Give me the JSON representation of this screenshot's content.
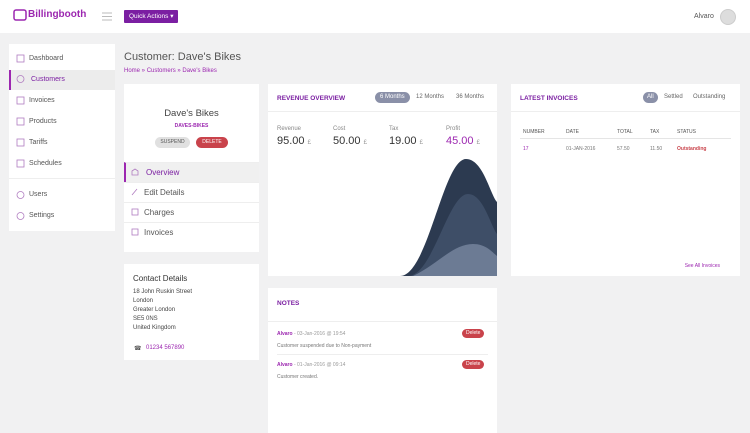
{
  "header": {
    "brand": "Billingbooth",
    "quick_actions": "Quick Actions",
    "user": "Alvaro"
  },
  "sidebar": {
    "items": [
      "Dashboard",
      "Customers",
      "Invoices",
      "Products",
      "Tariffs",
      "Schedules",
      "Users",
      "Settings"
    ]
  },
  "page": {
    "title": "Customer: Dave's Bikes",
    "breadcrumb": [
      "Home",
      "Customers",
      "Dave's Bikes"
    ]
  },
  "customer": {
    "name": "Dave's Bikes",
    "code": "DAVES-BIKES",
    "suspend": "SUSPEND",
    "delete": "DELETE",
    "menu": [
      "Overview",
      "Edit Details",
      "Charges",
      "Invoices"
    ]
  },
  "contact": {
    "title": "Contact Details",
    "address": [
      "18 John Ruskin Street",
      "London",
      "Greater London",
      "SE5 0NS",
      "United Kingdom"
    ],
    "phone": "01234 567890"
  },
  "revenue": {
    "title": "REVENUE OVERVIEW",
    "tabs": [
      "6 Months",
      "12 Months",
      "36 Months"
    ],
    "stats": [
      {
        "label": "Revenue",
        "value": "95.00",
        "unit": "£"
      },
      {
        "label": "Cost",
        "value": "50.00",
        "unit": "£"
      },
      {
        "label": "Tax",
        "value": "19.00",
        "unit": "£"
      },
      {
        "label": "Profit",
        "value": "45.00",
        "unit": "£"
      }
    ]
  },
  "invoices": {
    "title": "LATEST INVOICES",
    "tabs": [
      "All",
      "Settled",
      "Outstanding"
    ],
    "columns": [
      "NUMBER",
      "DATE",
      "TOTAL",
      "TAX",
      "STATUS"
    ],
    "rows": [
      [
        "17",
        "01-JAN-2016",
        "57.50",
        "11.50",
        "Outstanding"
      ]
    ],
    "link": "See All Invoices"
  },
  "notes": {
    "title": "NOTES",
    "items": [
      {
        "author": "Alvaro",
        "time": " - 03-Jan-2016 @ 19:54",
        "text": "Customer suspended due to Non-payment",
        "action": "Delete"
      },
      {
        "author": "Alvaro",
        "time": " - 01-Jan-2016 @ 09:14",
        "text": "Customer created.",
        "action": "Delete"
      }
    ]
  }
}
